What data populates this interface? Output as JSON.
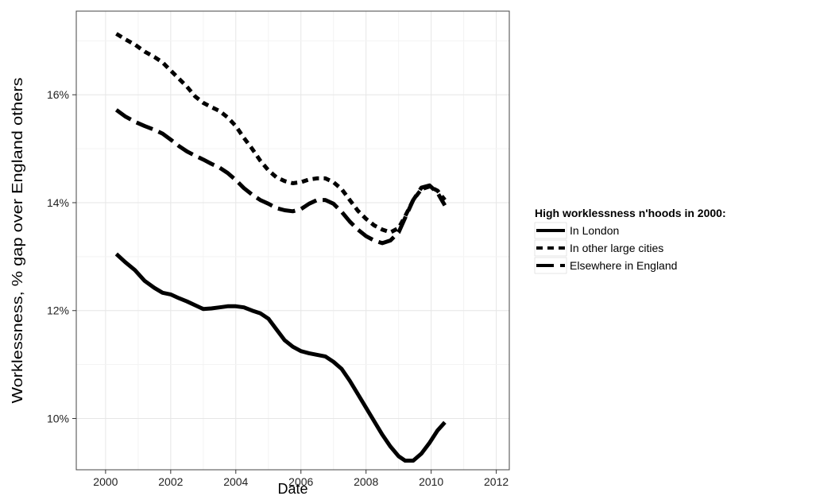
{
  "chart_data": {
    "type": "line",
    "title": "",
    "xlabel": "Date",
    "ylabel": "Worklessness, % gap over England others",
    "xlim": [
      1999.1,
      2012.4
    ],
    "ylim": [
      9.05,
      17.55
    ],
    "x_ticks": [
      2000,
      2002,
      2004,
      2006,
      2008,
      2010,
      2012
    ],
    "x_tick_labels": [
      "2000",
      "2002",
      "2004",
      "2006",
      "2008",
      "2010",
      "2012"
    ],
    "y_ticks": [
      10,
      12,
      14,
      16
    ],
    "y_tick_labels": [
      "10%",
      "12%",
      "14%",
      "16%"
    ],
    "grid": true,
    "legend": {
      "title": "High workless­ness n'hoods in 2000:",
      "placement": "right"
    },
    "series": [
      {
        "name": "In London",
        "dash": "solid",
        "x": [
          2000.33,
          2000.6,
          2000.9,
          2001.2,
          2001.5,
          2001.75,
          2002.0,
          2002.25,
          2002.5,
          2002.75,
          2003.0,
          2003.25,
          2003.5,
          2003.75,
          2004.0,
          2004.25,
          2004.5,
          2004.75,
          2005.0,
          2005.25,
          2005.5,
          2005.75,
          2006.0,
          2006.25,
          2006.5,
          2006.75,
          2007.0,
          2007.25,
          2007.5,
          2007.75,
          2008.0,
          2008.25,
          2008.5,
          2008.75,
          2009.0,
          2009.2,
          2009.45,
          2009.7,
          2009.95,
          2010.2,
          2010.42
        ],
        "y": [
          13.05,
          12.9,
          12.75,
          12.55,
          12.42,
          12.33,
          12.3,
          12.23,
          12.17,
          12.1,
          12.03,
          12.04,
          12.06,
          12.08,
          12.08,
          12.06,
          12.0,
          11.95,
          11.85,
          11.65,
          11.45,
          11.33,
          11.25,
          11.21,
          11.18,
          11.15,
          11.05,
          10.92,
          10.7,
          10.45,
          10.2,
          9.95,
          9.7,
          9.48,
          9.3,
          9.22,
          9.22,
          9.35,
          9.55,
          9.78,
          9.93
        ]
      },
      {
        "name": "In other large cities",
        "dash": "dotted",
        "x": [
          2000.33,
          2000.6,
          2000.9,
          2001.2,
          2001.5,
          2001.75,
          2002.0,
          2002.25,
          2002.5,
          2002.75,
          2003.0,
          2003.25,
          2003.5,
          2003.75,
          2004.0,
          2004.25,
          2004.5,
          2004.75,
          2005.0,
          2005.25,
          2005.5,
          2005.75,
          2006.0,
          2006.25,
          2006.5,
          2006.75,
          2007.0,
          2007.25,
          2007.5,
          2007.75,
          2008.0,
          2008.25,
          2008.5,
          2008.75,
          2009.0,
          2009.2,
          2009.45,
          2009.7,
          2009.95,
          2010.2,
          2010.42
        ],
        "y": [
          17.13,
          17.03,
          16.93,
          16.8,
          16.7,
          16.6,
          16.45,
          16.3,
          16.15,
          15.97,
          15.85,
          15.77,
          15.7,
          15.58,
          15.42,
          15.2,
          15.0,
          14.78,
          14.6,
          14.47,
          14.4,
          14.36,
          14.38,
          14.43,
          14.45,
          14.45,
          14.38,
          14.25,
          14.05,
          13.85,
          13.7,
          13.58,
          13.5,
          13.45,
          13.53,
          13.75,
          14.05,
          14.25,
          14.3,
          14.22,
          14.05
        ]
      },
      {
        "name": "Elsewhere in England",
        "dash": "dashed",
        "x": [
          2000.33,
          2000.6,
          2000.9,
          2001.2,
          2001.5,
          2001.75,
          2002.0,
          2002.25,
          2002.5,
          2002.75,
          2003.0,
          2003.25,
          2003.5,
          2003.75,
          2004.0,
          2004.25,
          2004.5,
          2004.75,
          2005.0,
          2005.25,
          2005.5,
          2005.75,
          2006.0,
          2006.25,
          2006.5,
          2006.75,
          2007.0,
          2007.25,
          2007.5,
          2007.75,
          2008.0,
          2008.25,
          2008.5,
          2008.75,
          2009.0,
          2009.2,
          2009.45,
          2009.7,
          2009.95,
          2010.2,
          2010.42
        ],
        "y": [
          15.72,
          15.6,
          15.5,
          15.42,
          15.35,
          15.28,
          15.17,
          15.05,
          14.95,
          14.87,
          14.8,
          14.72,
          14.65,
          14.55,
          14.42,
          14.27,
          14.15,
          14.05,
          13.98,
          13.9,
          13.86,
          13.84,
          13.88,
          13.98,
          14.05,
          14.05,
          13.98,
          13.83,
          13.65,
          13.5,
          13.38,
          13.3,
          13.25,
          13.3,
          13.45,
          13.72,
          14.05,
          14.28,
          14.32,
          14.18,
          13.95
        ]
      }
    ]
  }
}
